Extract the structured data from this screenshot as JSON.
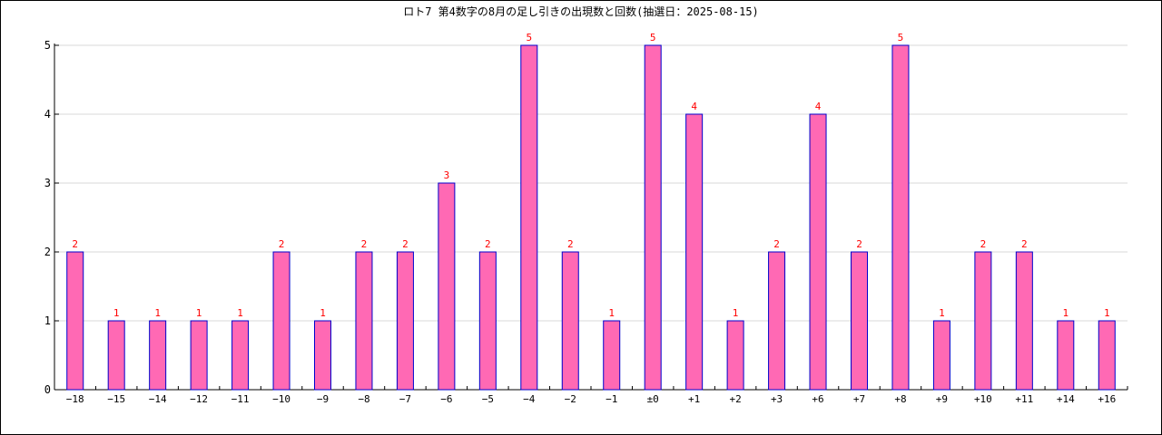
{
  "chart_data": {
    "type": "bar",
    "title": "ロト7 第4数字の8月の足し引きの出現数と回数(抽選日：2025-08-15)",
    "xlabel": "",
    "ylabel": "",
    "ylim": [
      0,
      5
    ],
    "yticks": [
      "0",
      "1",
      "2",
      "3",
      "4",
      "5"
    ],
    "grid": true,
    "categories": [
      "−18",
      "−15",
      "−14",
      "−12",
      "−11",
      "−10",
      "−9",
      "−8",
      "−7",
      "−6",
      "−5",
      "−4",
      "−2",
      "−1",
      "±0",
      "+1",
      "+2",
      "+3",
      "+6",
      "+7",
      "+8",
      "+9",
      "+10",
      "+11",
      "+14",
      "+16"
    ],
    "values": [
      2,
      1,
      1,
      1,
      1,
      2,
      1,
      2,
      2,
      3,
      2,
      5,
      2,
      1,
      5,
      4,
      1,
      2,
      4,
      2,
      5,
      1,
      2,
      2,
      1,
      1
    ],
    "colors": {
      "bar_fill": "#ff69b4",
      "bar_stroke": "#0000cc",
      "data_label": "#ff0000",
      "grid": "#d8d8d8",
      "axis": "#000000"
    }
  }
}
